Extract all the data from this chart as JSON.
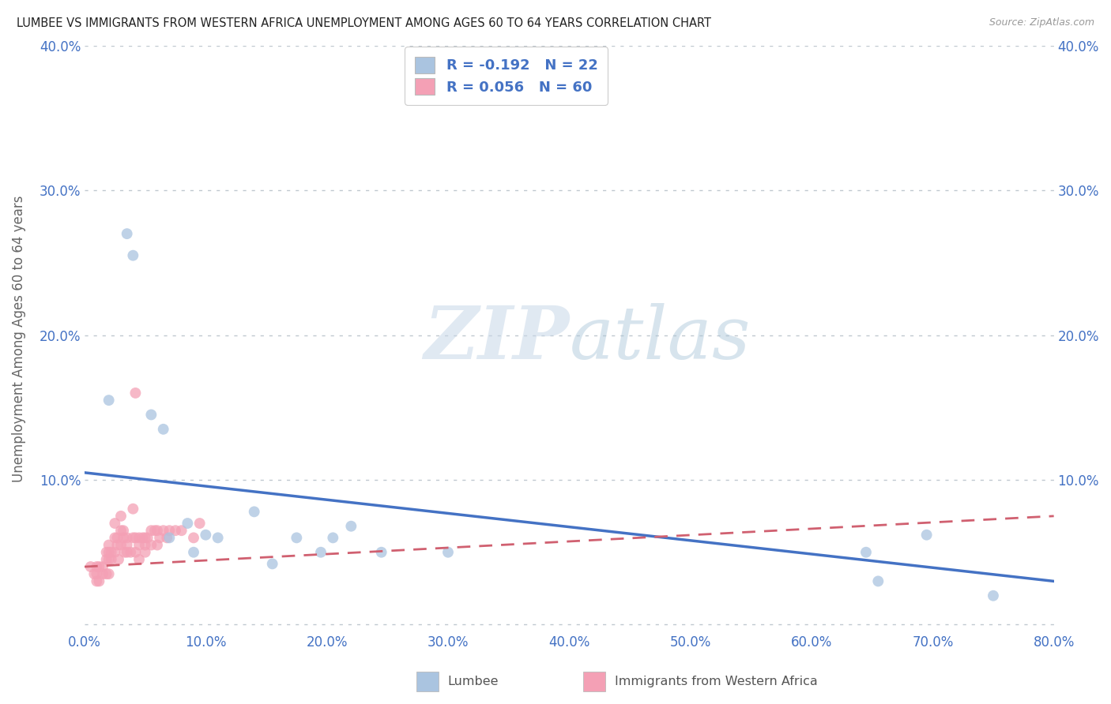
{
  "title": "LUMBEE VS IMMIGRANTS FROM WESTERN AFRICA UNEMPLOYMENT AMONG AGES 60 TO 64 YEARS CORRELATION CHART",
  "source": "Source: ZipAtlas.com",
  "ylabel": "Unemployment Among Ages 60 to 64 years",
  "xlim": [
    0,
    0.8
  ],
  "ylim": [
    -0.005,
    0.4
  ],
  "xticks": [
    0.0,
    0.1,
    0.2,
    0.3,
    0.4,
    0.5,
    0.6,
    0.7,
    0.8
  ],
  "yticks": [
    0.0,
    0.1,
    0.2,
    0.3,
    0.4
  ],
  "xtick_labels": [
    "0.0%",
    "10.0%",
    "20.0%",
    "30.0%",
    "40.0%",
    "50.0%",
    "60.0%",
    "70.0%",
    "80.0%"
  ],
  "ytick_labels": [
    "",
    "10.0%",
    "20.0%",
    "30.0%",
    "40.0%"
  ],
  "legend_labels": [
    "Lumbee",
    "Immigrants from Western Africa"
  ],
  "R_lumbee": -0.192,
  "N_lumbee": 22,
  "R_immigrants": 0.056,
  "N_immigrants": 60,
  "color_lumbee": "#aac4e0",
  "color_immigrants": "#f4a0b5",
  "trendline_lumbee_color": "#4472c4",
  "trendline_immigrants_color": "#d06070",
  "watermark_zip": "ZIP",
  "watermark_atlas": "atlas",
  "trendline_lumbee_x0": 0.0,
  "trendline_lumbee_y0": 0.105,
  "trendline_lumbee_x1": 0.8,
  "trendline_lumbee_y1": 0.03,
  "trendline_imm_x0": 0.0,
  "trendline_imm_y0": 0.04,
  "trendline_imm_x1": 0.8,
  "trendline_imm_y1": 0.075,
  "lumbee_x": [
    0.02,
    0.035,
    0.04,
    0.055,
    0.065,
    0.07,
    0.085,
    0.09,
    0.1,
    0.11,
    0.14,
    0.155,
    0.175,
    0.195,
    0.205,
    0.22,
    0.245,
    0.3,
    0.645,
    0.655,
    0.695,
    0.75
  ],
  "lumbee_y": [
    0.155,
    0.27,
    0.255,
    0.145,
    0.135,
    0.06,
    0.07,
    0.05,
    0.062,
    0.06,
    0.078,
    0.042,
    0.06,
    0.05,
    0.06,
    0.068,
    0.05,
    0.05,
    0.05,
    0.03,
    0.062,
    0.02
  ],
  "immigrants_x": [
    0.005,
    0.008,
    0.01,
    0.01,
    0.01,
    0.012,
    0.012,
    0.015,
    0.015,
    0.018,
    0.018,
    0.018,
    0.02,
    0.02,
    0.02,
    0.02,
    0.022,
    0.022,
    0.025,
    0.025,
    0.025,
    0.027,
    0.027,
    0.028,
    0.03,
    0.03,
    0.03,
    0.032,
    0.032,
    0.033,
    0.035,
    0.035,
    0.035,
    0.038,
    0.04,
    0.04,
    0.042,
    0.042,
    0.042,
    0.045,
    0.045,
    0.045,
    0.048,
    0.05,
    0.05,
    0.05,
    0.052,
    0.055,
    0.055,
    0.058,
    0.06,
    0.06,
    0.062,
    0.065,
    0.068,
    0.07,
    0.075,
    0.08,
    0.09,
    0.095
  ],
  "immigrants_y": [
    0.04,
    0.035,
    0.04,
    0.035,
    0.03,
    0.04,
    0.03,
    0.04,
    0.035,
    0.05,
    0.045,
    0.035,
    0.055,
    0.05,
    0.045,
    0.035,
    0.05,
    0.045,
    0.07,
    0.06,
    0.05,
    0.06,
    0.055,
    0.045,
    0.075,
    0.065,
    0.055,
    0.065,
    0.06,
    0.05,
    0.06,
    0.055,
    0.05,
    0.05,
    0.08,
    0.06,
    0.16,
    0.06,
    0.05,
    0.06,
    0.055,
    0.045,
    0.06,
    0.06,
    0.055,
    0.05,
    0.06,
    0.065,
    0.055,
    0.065,
    0.065,
    0.055,
    0.06,
    0.065,
    0.06,
    0.065,
    0.065,
    0.065,
    0.06,
    0.07
  ]
}
